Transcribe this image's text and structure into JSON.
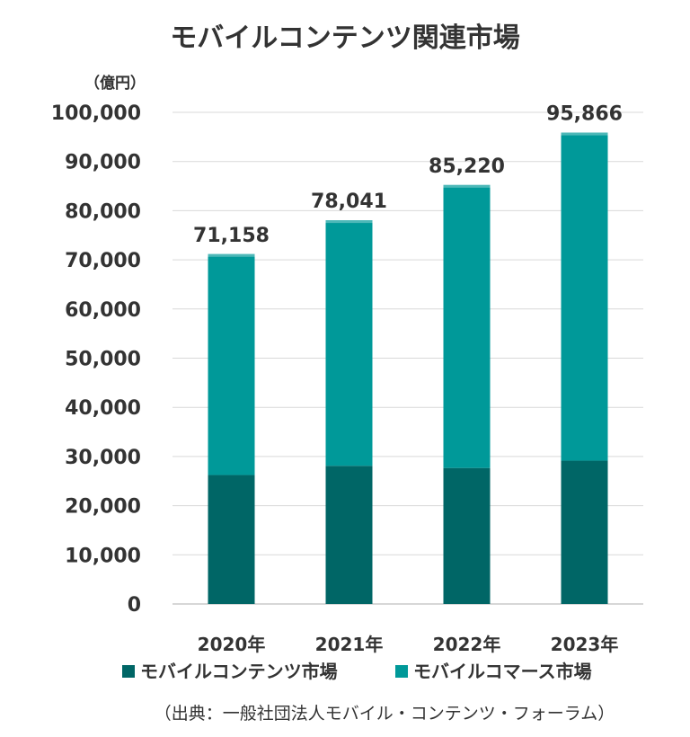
{
  "chart_data": {
    "type": "bar",
    "stacked": true,
    "title": "モバイルコンテンツ関連市場",
    "unit_label": "（億円）",
    "categories": [
      "2020年",
      "2021年",
      "2022年",
      "2023年"
    ],
    "series": [
      {
        "name": "モバイルコンテンツ市場",
        "values": [
          26227,
          28109,
          27664,
          29151
        ],
        "color": "#006666"
      },
      {
        "name": "モバイルコマース市場",
        "values": [
          44931,
          49932,
          57556,
          66715
        ],
        "color": "#009999"
      }
    ],
    "totals": [
      71158,
      78041,
      85220,
      95866
    ],
    "total_labels": [
      "71,158",
      "78,041",
      "85,220",
      "95,866"
    ],
    "ylim": [
      0,
      100000
    ],
    "yticks": [
      0,
      10000,
      20000,
      30000,
      40000,
      50000,
      60000,
      70000,
      80000,
      90000,
      100000
    ],
    "ytick_labels": [
      "0",
      "10,000",
      "20,000",
      "30,000",
      "40,000",
      "50,000",
      "60,000",
      "70,000",
      "80,000",
      "90,000",
      "100,000"
    ],
    "grid": true,
    "legend_position": "bottom",
    "source": "（出典：一般社団法人モバイル・コンテンツ・フォーラム）",
    "top_cap_color": "#4db8b8"
  }
}
